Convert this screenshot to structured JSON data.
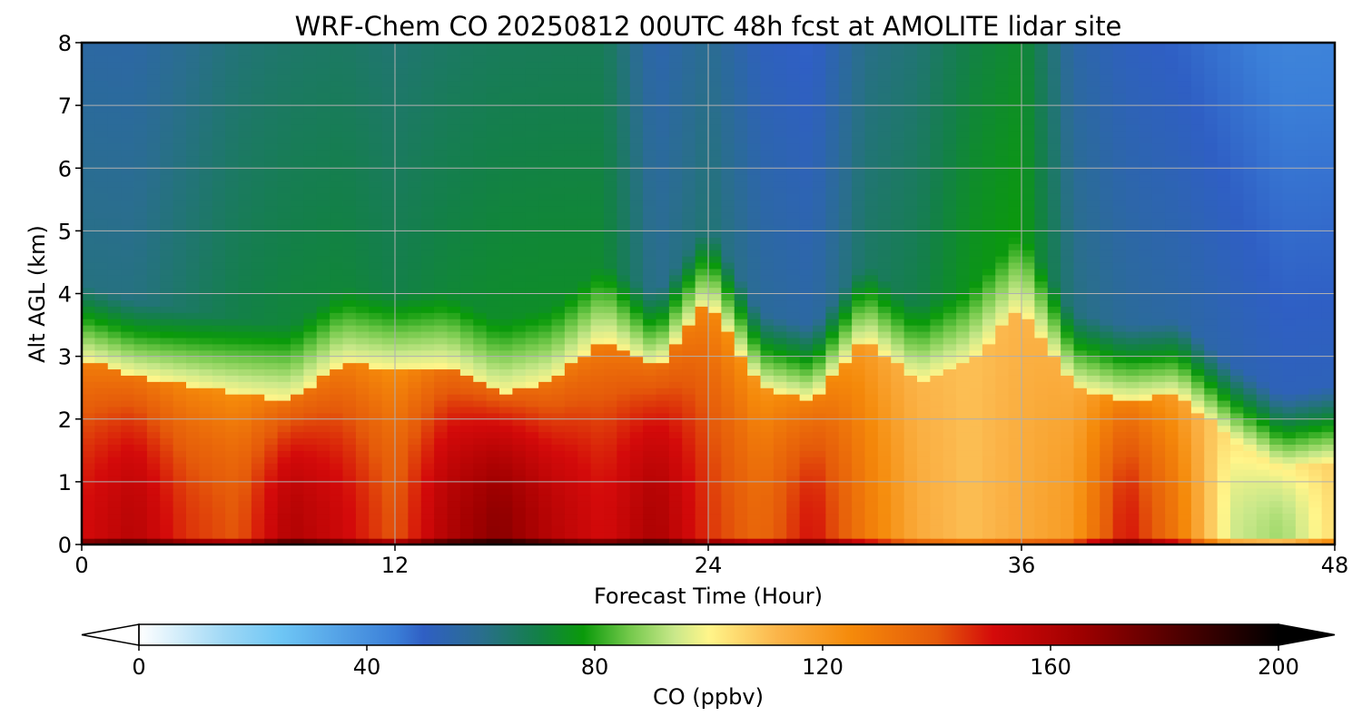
{
  "chart_data": {
    "type": "heatmap",
    "title": "WRF-Chem CO  20250812 00UTC 48h fcst at AMOLITE lidar site",
    "xlabel": "Forecast Time (Hour)",
    "ylabel": "Alt AGL (km)",
    "xlim": [
      0,
      48
    ],
    "ylim": [
      0,
      8
    ],
    "x_ticks": [
      "0",
      "12",
      "24",
      "36",
      "48"
    ],
    "y_ticks": [
      "0",
      "1",
      "2",
      "3",
      "4",
      "5",
      "6",
      "7",
      "8"
    ],
    "grid": true,
    "x": [
      0,
      2,
      4,
      6,
      8,
      10,
      12,
      14,
      16,
      18,
      20,
      22,
      24,
      26,
      28,
      30,
      32,
      34,
      36,
      38,
      40,
      42,
      44,
      46,
      48
    ],
    "z_profile_heights_km": [
      0,
      0.5,
      1,
      1.5,
      2,
      2.5,
      3,
      3.5,
      4,
      5,
      6,
      7,
      8
    ],
    "pbl_top_km": [
      2.95,
      2.7,
      2.55,
      2.4,
      2.3,
      2.9,
      2.8,
      2.85,
      2.4,
      2.6,
      3.3,
      2.8,
      3.9,
      2.5,
      2.3,
      3.3,
      2.6,
      2.9,
      3.8,
      2.5,
      2.3,
      2.4,
      1.7,
      1.2,
      1.35
    ],
    "surface_co_ppbv": [
      150,
      158,
      145,
      140,
      160,
      152,
      140,
      160,
      170,
      158,
      150,
      162,
      145,
      135,
      150,
      130,
      115,
      110,
      115,
      120,
      150,
      130,
      95,
      90,
      105
    ],
    "free_trop_co_ppbv": [
      62,
      62,
      66,
      70,
      72,
      72,
      70,
      72,
      74,
      74,
      73,
      60,
      64,
      58,
      56,
      66,
      70,
      76,
      78,
      62,
      58,
      56,
      54,
      52,
      52
    ],
    "colorbar": {
      "label": "CO  (ppbv)",
      "min": 0,
      "max": 200,
      "ticks": [
        "0",
        "40",
        "80",
        "120",
        "160",
        "200"
      ],
      "extend": "both",
      "stops": [
        {
          "v": 0,
          "c": "#ffffff"
        },
        {
          "v": 15,
          "c": "#9fd8f5"
        },
        {
          "v": 25,
          "c": "#6ec6f5"
        },
        {
          "v": 45,
          "c": "#3b7fd8"
        },
        {
          "v": 50,
          "c": "#2f5fc4"
        },
        {
          "v": 60,
          "c": "#2a6e8e"
        },
        {
          "v": 70,
          "c": "#138048"
        },
        {
          "v": 78,
          "c": "#0a9a0a"
        },
        {
          "v": 86,
          "c": "#72c84a"
        },
        {
          "v": 94,
          "c": "#c9e88a"
        },
        {
          "v": 100,
          "c": "#fff58a"
        },
        {
          "v": 112,
          "c": "#fbb54a"
        },
        {
          "v": 125,
          "c": "#f58a0a"
        },
        {
          "v": 140,
          "c": "#e55a0a"
        },
        {
          "v": 150,
          "c": "#d40a0a"
        },
        {
          "v": 165,
          "c": "#a00000"
        },
        {
          "v": 180,
          "c": "#5a0000"
        },
        {
          "v": 200,
          "c": "#000000"
        }
      ]
    }
  }
}
